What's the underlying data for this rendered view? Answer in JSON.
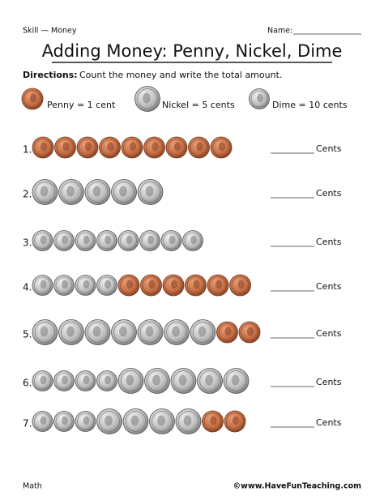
{
  "header": {
    "skill": "Skill — Money",
    "name_label": "Name:"
  },
  "title": "Adding Money: Penny, Nickel, Dime",
  "directions": {
    "label": "Directions:",
    "text": "Count the money and write the total amount."
  },
  "legend": [
    {
      "label": "Penny = 1 cent"
    },
    {
      "label": "Nickel = 5 cents"
    },
    {
      "label": "Dime = 10 cents"
    }
  ],
  "problems": [
    {
      "number": "1.",
      "answer_label": "Cents"
    },
    {
      "number": "2.",
      "answer_label": "Cents"
    },
    {
      "number": "3.",
      "answer_label": "Cents"
    },
    {
      "number": "4.",
      "answer_label": "Cents"
    },
    {
      "number": "5.",
      "answer_label": "Cents"
    },
    {
      "number": "6.",
      "answer_label": "Cents"
    },
    {
      "number": "7.",
      "answer_label": "Cents"
    }
  ],
  "footer": {
    "subject": "Math",
    "credit": "©www.HaveFunTeaching.com"
  }
}
